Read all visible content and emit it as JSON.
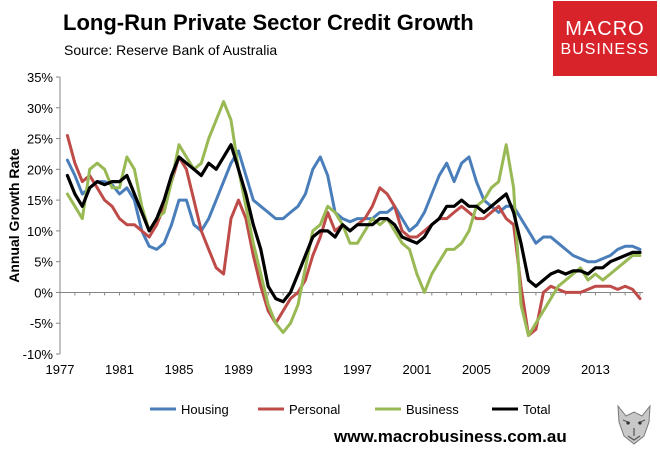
{
  "header": {
    "title": "Long-Run Private Sector Credit Growth",
    "subtitle": "Source: Reserve Bank of Australia"
  },
  "logo": {
    "line1": "MACRO",
    "line2": "BUSINESS"
  },
  "footer": {
    "url": "www.macrobusiness.com.au"
  },
  "colors": {
    "housing": "#4a7ebb",
    "personal": "#be4b48",
    "business": "#98b954",
    "total": "#000000",
    "logo_bg": "#d9232a"
  },
  "chart_data": {
    "type": "line",
    "title": "Long-Run Private Sector Credit Growth",
    "xlabel": "",
    "ylabel": "Annual Growth Rate",
    "xlim": [
      1977,
      2016.2
    ],
    "ylim": [
      -10,
      35
    ],
    "yticks": [
      "35%",
      "30%",
      "25%",
      "20%",
      "15%",
      "10%",
      "5%",
      "0%",
      "-5%",
      "-10%"
    ],
    "ytick_values": [
      35,
      30,
      25,
      20,
      15,
      10,
      5,
      0,
      -5,
      -10
    ],
    "xticks": [
      "1977",
      "1981",
      "1985",
      "1989",
      "1993",
      "1997",
      "2001",
      "2005",
      "2009",
      "2013"
    ],
    "xtick_values": [
      1977,
      1981,
      1985,
      1989,
      1993,
      1997,
      2001,
      2005,
      2009,
      2013
    ],
    "legend_position": "bottom",
    "grid": false,
    "series": [
      {
        "name": "Housing",
        "x": [
          1977.5,
          1978,
          1978.5,
          1979,
          1979.5,
          1980,
          1980.5,
          1981,
          1981.5,
          1982,
          1982.5,
          1983,
          1983.5,
          1984,
          1984.5,
          1985,
          1985.5,
          1986,
          1986.5,
          1987,
          1987.5,
          1988,
          1988.5,
          1989,
          1989.5,
          1990,
          1990.5,
          1991,
          1991.5,
          1992,
          1992.5,
          1993,
          1993.5,
          1994,
          1994.5,
          1995,
          1995.5,
          1996,
          1996.5,
          1997,
          1997.5,
          1998,
          1998.5,
          1999,
          1999.5,
          2000,
          2000.5,
          2001,
          2001.5,
          2002,
          2002.5,
          2003,
          2003.5,
          2004,
          2004.5,
          2005,
          2005.5,
          2006,
          2006.5,
          2007,
          2007.5,
          2008,
          2008.5,
          2009,
          2009.5,
          2010,
          2010.5,
          2011,
          2011.5,
          2012,
          2012.5,
          2013,
          2013.5,
          2014,
          2014.5,
          2015,
          2015.5,
          2016
        ],
        "values": [
          21.5,
          19,
          16,
          17,
          18,
          18,
          17.5,
          16,
          17,
          15,
          10,
          7.5,
          7,
          8,
          11,
          15,
          15,
          11,
          10,
          12,
          15,
          18,
          21,
          23,
          19,
          15,
          14,
          13,
          12,
          12,
          13,
          14,
          16,
          20,
          22,
          19,
          13,
          12,
          11.5,
          12,
          12,
          12,
          13,
          13,
          14,
          12,
          10,
          11,
          13,
          16,
          19,
          21,
          18,
          21,
          22,
          18,
          15,
          14,
          13,
          14,
          14,
          12,
          10,
          8,
          9,
          9,
          8,
          7,
          6,
          5.5,
          5,
          5,
          5.5,
          6,
          7,
          7.5,
          7.5,
          7
        ]
      },
      {
        "name": "Personal",
        "x": [
          1977.5,
          1978,
          1978.5,
          1979,
          1979.5,
          1980,
          1980.5,
          1981,
          1981.5,
          1982,
          1982.5,
          1983,
          1983.5,
          1984,
          1984.5,
          1985,
          1985.5,
          1986,
          1986.5,
          1987,
          1987.5,
          1988,
          1988.5,
          1989,
          1989.5,
          1990,
          1990.5,
          1991,
          1991.5,
          1992,
          1992.5,
          1993,
          1993.5,
          1994,
          1994.5,
          1995,
          1995.5,
          1996,
          1996.5,
          1997,
          1997.5,
          1998,
          1998.5,
          1999,
          1999.5,
          2000,
          2000.5,
          2001,
          2001.5,
          2002,
          2002.5,
          2003,
          2003.5,
          2004,
          2004.5,
          2005,
          2005.5,
          2006,
          2006.5,
          2007,
          2007.5,
          2008,
          2008.5,
          2009,
          2009.5,
          2010,
          2010.5,
          2011,
          2011.5,
          2012,
          2012.5,
          2013,
          2013.5,
          2014,
          2014.5,
          2015,
          2015.5,
          2016
        ],
        "values": [
          25.5,
          21,
          18,
          19,
          17,
          15,
          14,
          12,
          11,
          11,
          10,
          9,
          11,
          14,
          18,
          22,
          20,
          15,
          10,
          7,
          4,
          3,
          12,
          15,
          12,
          6,
          1,
          -3,
          -5,
          -3,
          -1,
          0,
          2,
          6,
          9,
          13,
          10,
          11,
          10,
          11,
          12,
          14,
          17,
          16,
          14,
          10,
          9,
          9,
          10,
          11,
          12,
          12,
          13,
          14,
          13,
          12,
          12,
          13,
          14,
          12,
          11,
          1,
          -7,
          -6,
          0,
          1,
          0.5,
          0,
          0,
          0,
          0.5,
          1,
          1,
          1,
          0.5,
          1,
          0.5,
          -1
        ]
      },
      {
        "name": "Business",
        "x": [
          1977.5,
          1978,
          1978.5,
          1979,
          1979.5,
          1980,
          1980.5,
          1981,
          1981.5,
          1982,
          1982.5,
          1983,
          1983.5,
          1984,
          1984.5,
          1985,
          1985.5,
          1986,
          1986.5,
          1987,
          1987.5,
          1988,
          1988.5,
          1989,
          1989.5,
          1990,
          1990.5,
          1991,
          1991.5,
          1992,
          1992.5,
          1993,
          1993.5,
          1994,
          1994.5,
          1995,
          1995.5,
          1996,
          1996.5,
          1997,
          1997.5,
          1998,
          1998.5,
          1999,
          1999.5,
          2000,
          2000.5,
          2001,
          2001.5,
          2002,
          2002.5,
          2003,
          2003.5,
          2004,
          2004.5,
          2005,
          2005.5,
          2006,
          2006.5,
          2007,
          2007.5,
          2008,
          2008.5,
          2009,
          2009.5,
          2010,
          2010.5,
          2011,
          2011.5,
          2012,
          2012.5,
          2013,
          2013.5,
          2014,
          2014.5,
          2015,
          2015.5,
          2016
        ],
        "values": [
          16,
          14,
          12,
          20,
          21,
          20,
          17,
          17,
          22,
          20,
          14,
          10,
          12,
          13,
          18,
          24,
          22,
          20,
          21,
          25,
          28,
          31,
          28,
          20,
          14,
          8,
          3,
          -2,
          -5,
          -6.5,
          -5,
          -2,
          4,
          10,
          11,
          14,
          13,
          11,
          8,
          8,
          10,
          12,
          11,
          12,
          10,
          8,
          7,
          3,
          0,
          3,
          5,
          7,
          7,
          8,
          10,
          14,
          15,
          17,
          18,
          24,
          17,
          -2,
          -7,
          -5,
          -3,
          -1,
          1,
          2,
          3,
          4,
          2,
          3,
          2,
          3,
          4,
          5,
          6,
          6
        ]
      },
      {
        "name": "Total",
        "x": [
          1977.5,
          1978,
          1978.5,
          1979,
          1979.5,
          1980,
          1980.5,
          1981,
          1981.5,
          1982,
          1982.5,
          1983,
          1983.5,
          1984,
          1984.5,
          1985,
          1985.5,
          1986,
          1986.5,
          1987,
          1987.5,
          1988,
          1988.5,
          1989,
          1989.5,
          1990,
          1990.5,
          1991,
          1991.5,
          1992,
          1992.5,
          1993,
          1993.5,
          1994,
          1994.5,
          1995,
          1995.5,
          1996,
          1996.5,
          1997,
          1997.5,
          1998,
          1998.5,
          1999,
          1999.5,
          2000,
          2000.5,
          2001,
          2001.5,
          2002,
          2002.5,
          2003,
          2003.5,
          2004,
          2004.5,
          2005,
          2005.5,
          2006,
          2006.5,
          2007,
          2007.5,
          2008,
          2008.5,
          2009,
          2009.5,
          2010,
          2010.5,
          2011,
          2011.5,
          2012,
          2012.5,
          2013,
          2013.5,
          2014,
          2014.5,
          2015,
          2015.5,
          2016
        ],
        "values": [
          19,
          16,
          14,
          17,
          18,
          17.5,
          18,
          18,
          19,
          16,
          13,
          10,
          12,
          15,
          19,
          22,
          21,
          20,
          19,
          21,
          20,
          22,
          24,
          20,
          16,
          11,
          7,
          1,
          -1,
          -1.5,
          0,
          3,
          6,
          9,
          10,
          10,
          9,
          11,
          10,
          11,
          11,
          11,
          12,
          12,
          11,
          9,
          8.5,
          8,
          9,
          11,
          12,
          14,
          14,
          15,
          14,
          14,
          13,
          14,
          15,
          16,
          13,
          8,
          2,
          1,
          2,
          3,
          3.5,
          3,
          3.5,
          3.5,
          3,
          4,
          4,
          5,
          5.5,
          6,
          6.5,
          6.5
        ]
      }
    ]
  }
}
